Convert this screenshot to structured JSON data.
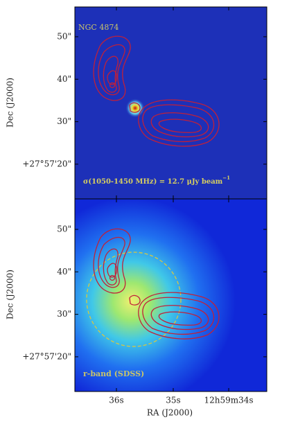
{
  "panels": [
    {
      "label": "NGC 4874",
      "note": "σ(1050-1450 MHz) = 12.7 μJy beam",
      "note_superscript": "−1",
      "yticks": [
        "50\"",
        "40\"",
        "30\"",
        "+27°57'20\""
      ],
      "ylabel": "Dec (J2000)"
    },
    {
      "label": "r-band (SDSS)",
      "yticks": [
        "50\"",
        "40\"",
        "30\"",
        "+27°57'20\""
      ],
      "ylabel": "Dec (J2000)"
    }
  ],
  "xticks": [
    "36s",
    "35s",
    "12h59m34s"
  ],
  "xlabel": "RA (J2000)"
}
